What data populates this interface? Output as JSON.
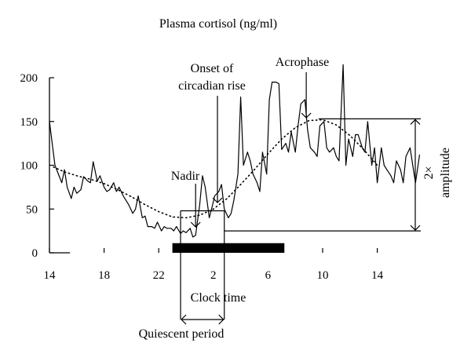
{
  "chart_data": {
    "type": "line",
    "title": "Plasma cortisol (ng/ml)",
    "xlabel": "Clock time",
    "ylabel": "",
    "ylim": [
      0,
      200
    ],
    "yticks": [
      0,
      50,
      100,
      150,
      200
    ],
    "xlim": [
      14,
      15.5
    ],
    "x_axis_note": "clock hours; values past 24 continue into the next day",
    "xtick_positions": [
      14,
      18,
      22,
      26,
      30,
      34,
      38
    ],
    "xtick_labels": [
      "14",
      "18",
      "22",
      "2",
      "6",
      "10",
      "14"
    ],
    "series": [
      {
        "style": "solid",
        "x": [
          14.0,
          14.4,
          14.7,
          14.9,
          15.1,
          15.3,
          15.6,
          15.8,
          16.0,
          16.3,
          16.5,
          16.8,
          17.0,
          17.2,
          17.5,
          17.7,
          18.0,
          18.2,
          18.4,
          18.7,
          18.9,
          19.1,
          19.4,
          19.6,
          19.8,
          20.1,
          20.3,
          20.5,
          20.8,
          21.0,
          21.2,
          21.5,
          21.7,
          21.9,
          22.2,
          22.4,
          22.6,
          22.9,
          23.1,
          23.3,
          23.6,
          23.8,
          24.0,
          24.3,
          24.5,
          24.7,
          25.0,
          25.2,
          25.4,
          25.7,
          25.9,
          26.1,
          26.4,
          26.6,
          26.8,
          27.1,
          27.3,
          27.5,
          27.8,
          28.0,
          28.2,
          28.5,
          28.7,
          28.9,
          29.2,
          29.4,
          29.6,
          29.9,
          30.1,
          30.3,
          30.6,
          30.8,
          31.0,
          31.3,
          31.5,
          31.7,
          32.0,
          32.2,
          32.4,
          32.7,
          32.9,
          33.1,
          33.4,
          33.6,
          33.8,
          34.1,
          34.3,
          34.5,
          34.8,
          35.0,
          35.2,
          35.5,
          35.7,
          35.9,
          36.2,
          36.4,
          36.6,
          36.9,
          37.1,
          37.3,
          37.6,
          37.8,
          38.0,
          38.3,
          38.5,
          38.7,
          39.0,
          39.2,
          39.4,
          39.7,
          39.9,
          40.1,
          40.4,
          40.6,
          40.8,
          41.1
        ],
        "values": [
          150,
          100,
          88,
          80,
          95,
          75,
          62,
          75,
          68,
          72,
          87,
          82,
          80,
          104,
          82,
          88,
          75,
          70,
          72,
          80,
          70,
          75,
          65,
          60,
          55,
          45,
          50,
          65,
          40,
          42,
          30,
          30,
          28,
          35,
          25,
          30,
          28,
          28,
          25,
          30,
          22,
          25,
          23,
          28,
          18,
          20,
          55,
          88,
          75,
          40,
          52,
          65,
          70,
          78,
          50,
          40,
          45,
          60,
          90,
          178,
          100,
          115,
          105,
          90,
          80,
          70,
          115,
          90,
          175,
          195,
          195,
          193,
          118,
          125,
          115,
          138,
          115,
          145,
          170,
          175,
          140,
          120,
          115,
          110,
          145,
          150,
          120,
          115,
          120,
          110,
          105,
          215,
          100,
          130,
          110,
          135,
          135,
          120,
          115,
          150,
          100,
          120,
          80,
          120,
          100,
          95,
          88,
          80,
          105,
          95,
          80,
          110,
          120,
          100,
          80,
          112
        ]
      },
      {
        "style": "dotted",
        "x": [
          14.3,
          15,
          16,
          17,
          18,
          19,
          20,
          21,
          22,
          23,
          24,
          25,
          26,
          27,
          28,
          29,
          30,
          31,
          32,
          33,
          34,
          35,
          36,
          37,
          38
        ],
        "values": [
          98,
          93,
          88,
          84,
          79,
          72,
          64,
          55,
          47,
          41,
          40,
          43,
          50,
          62,
          78,
          95,
          113,
          130,
          143,
          151,
          152,
          146,
          134,
          118,
          100
        ]
      }
    ],
    "annotations": {
      "nadir": "Nadir",
      "onset_line1": "Onset of",
      "onset_line2": "circadian rise",
      "acrophase": "Acrophase",
      "amplitude_line1": "2×",
      "amplitude_line2": "amplitude",
      "quiescent": "Quiescent period"
    },
    "amplitude_levels": [
      25,
      153
    ],
    "quiescent_box": {
      "x_start": 23.6,
      "x_end": 26.8,
      "y_top": 48,
      "y_bottom": 0
    },
    "sleep_bar": {
      "x_start": 23,
      "x_end": 31.2,
      "y_low": 0,
      "y_high": 11
    },
    "nadir_x": 24.7,
    "onset_x": 26.3,
    "acrophase_x": 32.8
  }
}
